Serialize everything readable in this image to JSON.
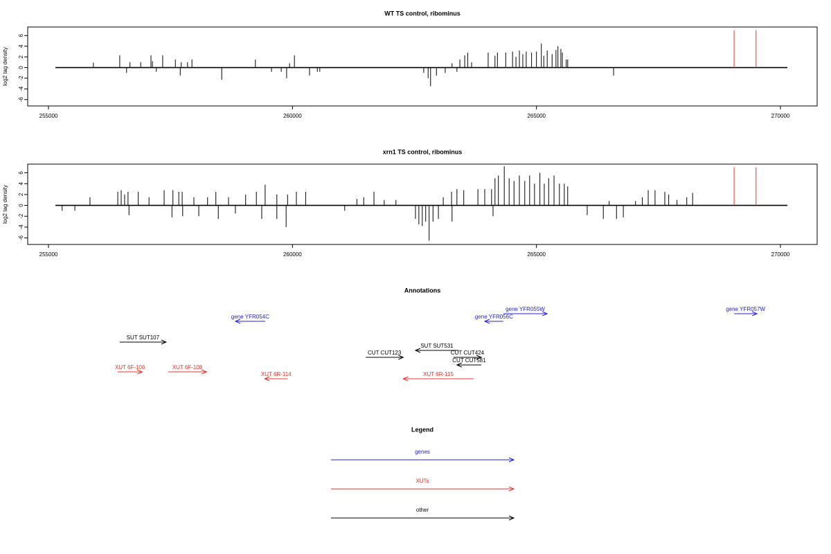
{
  "chart_data": [
    {
      "type": "spike",
      "title": "WT TS control, ribominus",
      "y_label": "log2 tag density",
      "xlim": [
        254574,
        270752
      ],
      "xticks": [
        255000,
        260000,
        265000,
        270000
      ],
      "ylim": [
        -7.2,
        7.6
      ],
      "yticks": [
        -6,
        -4,
        -2,
        0,
        2,
        4,
        6
      ],
      "series": [
        {
          "color": "#000000",
          "x": [
            255920,
            256460,
            256670,
            256890,
            257100,
            257130,
            257340,
            257600,
            257720,
            257850,
            257940,
            259240,
            259940,
            260040,
            263270,
            263430,
            263530,
            263590,
            263670,
            264010,
            264150,
            264200,
            264370,
            264510,
            264580,
            264650,
            264720,
            264790,
            264900,
            265000,
            265100,
            265150,
            265220,
            265320,
            265400,
            265440,
            265500,
            265530,
            265610,
            265640,
            256600,
            257210,
            257700,
            258550,
            259570,
            259770,
            259880,
            260350,
            260510,
            260560,
            262690,
            262780,
            262830,
            262950,
            263130,
            263370,
            266580
          ],
          "values": [
            0.9,
            2.3,
            1,
            1,
            2.3,
            1.2,
            2.3,
            1.5,
            1,
            1,
            1.5,
            1.5,
            0.8,
            2.3,
            0.8,
            1.5,
            2.3,
            2.8,
            1,
            2.8,
            2.2,
            2.8,
            2.8,
            3,
            2,
            3.2,
            2.5,
            3,
            2.8,
            3,
            4.5,
            2.2,
            3.2,
            2.5,
            3.3,
            4,
            3.5,
            2.8,
            1.5,
            1.5,
            -1,
            -0.8,
            -1.5,
            -2.3,
            -0.8,
            -0.8,
            -2,
            -1.5,
            -0.8,
            -0.8,
            -1,
            -2,
            -3.5,
            -1.5,
            -1,
            -0.8,
            -1.5
          ]
        },
        {
          "color": "#e8332a",
          "x": [
            269050,
            269500
          ],
          "values": [
            7,
            7
          ]
        }
      ]
    },
    {
      "type": "spike",
      "title": "xrn1 TS control, ribominus",
      "y_label": "log2 tag density",
      "xlim": [
        254574,
        270752
      ],
      "xticks": [
        255000,
        260000,
        265000,
        270000
      ],
      "ylim": [
        -7.2,
        7.6
      ],
      "yticks": [
        -6,
        -4,
        -2,
        0,
        2,
        4,
        6
      ],
      "series": [
        {
          "color": "#000000",
          "x": [
            255850,
            256420,
            256490,
            256560,
            256630,
            256840,
            257060,
            257370,
            257550,
            257670,
            257740,
            257980,
            258260,
            258430,
            258690,
            259040,
            259260,
            259440,
            259680,
            259900,
            260080,
            260270,
            261320,
            261460,
            261670,
            261880,
            262120,
            263090,
            263260,
            263370,
            263510,
            263800,
            263940,
            264080,
            264150,
            264220,
            264340,
            264440,
            264540,
            264650,
            264760,
            264860,
            264960,
            265070,
            265160,
            265250,
            265360,
            265470,
            265570,
            265640,
            266490,
            267030,
            267170,
            267290,
            267430,
            267630,
            267710,
            267880,
            268080,
            268200,
            255280,
            255540,
            256650,
            257530,
            257750,
            258080,
            258480,
            258830,
            259370,
            259680,
            259870,
            261070,
            262520,
            262590,
            262660,
            262730,
            262800,
            262880,
            262990,
            263270,
            264110,
            266040,
            266370,
            266640,
            266780
          ],
          "values": [
            1.5,
            2.5,
            2.8,
            2,
            2.5,
            2.5,
            1.5,
            2.8,
            2.8,
            2.5,
            2.5,
            1.5,
            1.5,
            2.5,
            1.5,
            2,
            2.5,
            3.8,
            2,
            2,
            2.5,
            2.5,
            1.2,
            1.5,
            2.5,
            1,
            1,
            1.5,
            2.5,
            3,
            2.8,
            3,
            3,
            3,
            5,
            5.5,
            7.2,
            5,
            4.5,
            5.5,
            4.5,
            5.5,
            4,
            6,
            4,
            5,
            5.5,
            4,
            4,
            3.5,
            0.8,
            0.8,
            1.5,
            2.8,
            2.8,
            2.5,
            2,
            1,
            1.5,
            2.3,
            -1,
            -1,
            -1.8,
            -2.2,
            -2,
            -2,
            -2.5,
            -1.5,
            -2.5,
            -2.5,
            -4,
            -1,
            -2.5,
            -3.5,
            -3.8,
            -3,
            -6.5,
            -3,
            -2.5,
            -3,
            -2,
            -1.8,
            -2.5,
            -2.5,
            -2.2
          ]
        },
        {
          "color": "#e8332a",
          "x": [
            269050,
            269500
          ],
          "values": [
            7,
            7
          ]
        }
      ]
    }
  ],
  "annotations": {
    "title": "Annotations",
    "features": [
      {
        "label": "gene YFR054C",
        "color": "#2222dd",
        "from": 259440,
        "to": 258830
      },
      {
        "label": "gene YFR055W",
        "color": "#2222dd",
        "from": 264320,
        "to": 265220
      },
      {
        "label": "gene YFR056C",
        "color": "#2222dd",
        "from": 264320,
        "to": 263940
      },
      {
        "label": "gene YFR057W",
        "color": "#2222dd",
        "from": 269050,
        "to": 269520
      },
      {
        "label": "SUT SUT107",
        "color": "#000000",
        "from": 256460,
        "to": 257410
      },
      {
        "label": "SUT SUT531",
        "color": "#000000",
        "from": 263400,
        "to": 262520
      },
      {
        "label": "CUT CUT123",
        "color": "#000000",
        "from": 261500,
        "to": 262270
      },
      {
        "label": "CUT CUT424",
        "color": "#000000",
        "from": 263300,
        "to": 263870
      },
      {
        "label": "CUT CUT581",
        "color": "#000000",
        "from": 263870,
        "to": 263370
      },
      {
        "label": "XUT 6F-106",
        "color": "#e8332a",
        "from": 256420,
        "to": 256920
      },
      {
        "label": "XUT 6F-108",
        "color": "#e8332a",
        "from": 257450,
        "to": 258240
      },
      {
        "label": "XUT 6R-114",
        "color": "#e8332a",
        "from": 259900,
        "to": 259430
      },
      {
        "label": "XUT 6R-115",
        "color": "#e8332a",
        "from": 263710,
        "to": 262270
      }
    ]
  },
  "legend": {
    "title": "Legend",
    "entries": [
      {
        "label": "genes",
        "color": "#2222dd"
      },
      {
        "label": "XUTs",
        "color": "#e8332a"
      },
      {
        "label": "other",
        "color": "#000000"
      }
    ]
  }
}
